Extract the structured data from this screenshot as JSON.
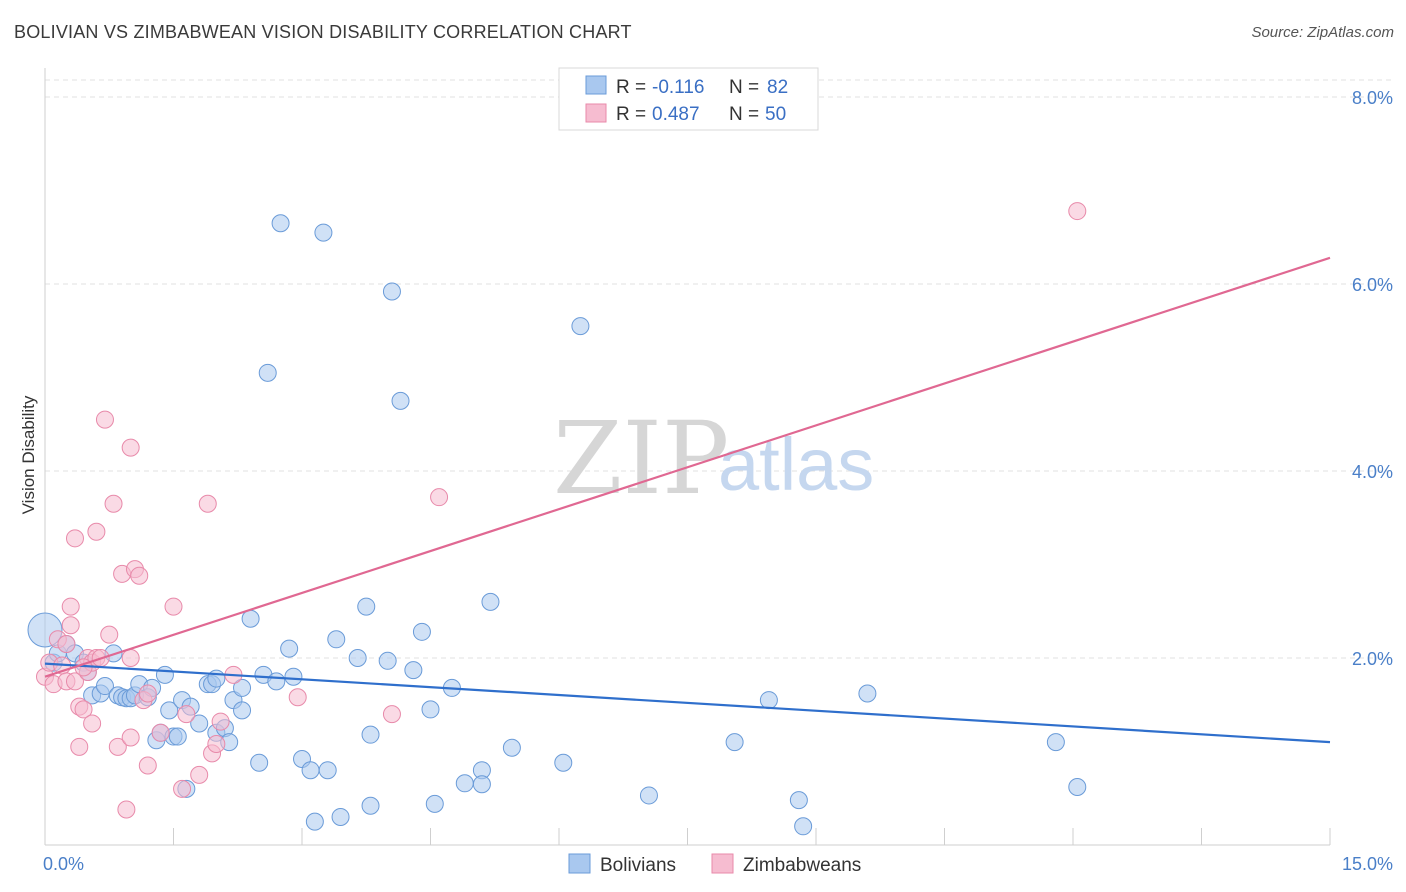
{
  "title": "BOLIVIAN VS ZIMBABWEAN VISION DISABILITY CORRELATION CHART",
  "source": "Source: ZipAtlas.com",
  "watermark": {
    "zip": "ZIP",
    "atlas": "atlas"
  },
  "legend": {
    "rows": [
      {
        "r_label": "R = ",
        "r_value": "-0.116",
        "n_label": "N = ",
        "n_value": "82"
      },
      {
        "r_label": "R = ",
        "r_value": "0.487",
        "n_label": "N = ",
        "n_value": "50"
      }
    ]
  },
  "colors": {
    "bolivians_fill": "#a9c8ef",
    "bolivians_stroke": "#6a9bd8",
    "bolivians_line": "#2f6fcc",
    "zimbabweans_fill": "#f6bcd0",
    "zimbabweans_stroke": "#e88aaa",
    "zimbabweans_line": "#e06892",
    "grid": "#e2e2e2",
    "axis_text": "#4a7fc8"
  },
  "chart_data": {
    "type": "scatter",
    "title": "BOLIVIAN VS ZIMBABWEAN VISION DISABILITY CORRELATION CHART",
    "xlabel": "",
    "ylabel": "Vision Disability",
    "xlim": [
      0,
      15
    ],
    "ylim": [
      0,
      8.0
    ],
    "x_tick_labels": [
      "0.0%",
      "15.0%"
    ],
    "y_ticks": [
      2,
      4,
      6,
      8
    ],
    "y_tick_labels": [
      "2.0%",
      "4.0%",
      "6.0%",
      "8.0%"
    ],
    "grid": true,
    "legend_position": "top-center",
    "series": [
      {
        "name": "Bolivians",
        "r": -0.116,
        "n": 82,
        "trend": [
          [
            0,
            1.94
          ],
          [
            15,
            1.1
          ]
        ],
        "points": [
          [
            0.0,
            2.3
          ],
          [
            0.1,
            1.95
          ],
          [
            0.15,
            2.05
          ],
          [
            0.25,
            2.15
          ],
          [
            0.35,
            2.05
          ],
          [
            0.45,
            1.95
          ],
          [
            0.5,
            1.85
          ],
          [
            0.55,
            1.6
          ],
          [
            0.65,
            1.62
          ],
          [
            0.7,
            1.7
          ],
          [
            0.8,
            2.05
          ],
          [
            0.85,
            1.6
          ],
          [
            0.9,
            1.58
          ],
          [
            0.95,
            1.57
          ],
          [
            1.0,
            1.57
          ],
          [
            1.05,
            1.6
          ],
          [
            1.1,
            1.72
          ],
          [
            1.2,
            1.58
          ],
          [
            1.25,
            1.68
          ],
          [
            1.3,
            1.12
          ],
          [
            1.35,
            1.2
          ],
          [
            1.4,
            1.82
          ],
          [
            1.45,
            1.44
          ],
          [
            1.5,
            1.16
          ],
          [
            1.55,
            1.16
          ],
          [
            1.6,
            1.55
          ],
          [
            1.65,
            0.6
          ],
          [
            1.7,
            1.48
          ],
          [
            1.8,
            1.3
          ],
          [
            1.9,
            1.72
          ],
          [
            1.95,
            1.72
          ],
          [
            2.0,
            1.78
          ],
          [
            2.0,
            1.2
          ],
          [
            2.1,
            1.25
          ],
          [
            2.15,
            1.1
          ],
          [
            2.2,
            1.55
          ],
          [
            2.3,
            1.44
          ],
          [
            2.3,
            1.68
          ],
          [
            2.4,
            2.42
          ],
          [
            2.5,
            0.88
          ],
          [
            2.55,
            1.82
          ],
          [
            2.6,
            5.05
          ],
          [
            2.7,
            1.75
          ],
          [
            2.75,
            6.65
          ],
          [
            2.85,
            2.1
          ],
          [
            2.9,
            1.8
          ],
          [
            3.0,
            0.92
          ],
          [
            3.1,
            0.8
          ],
          [
            3.15,
            0.25
          ],
          [
            3.25,
            6.55
          ],
          [
            3.3,
            0.8
          ],
          [
            3.4,
            2.2
          ],
          [
            3.45,
            0.3
          ],
          [
            3.65,
            2.0
          ],
          [
            3.75,
            2.55
          ],
          [
            3.8,
            0.42
          ],
          [
            3.8,
            1.18
          ],
          [
            4.0,
            1.97
          ],
          [
            4.05,
            5.92
          ],
          [
            4.15,
            4.75
          ],
          [
            4.3,
            1.87
          ],
          [
            4.4,
            2.28
          ],
          [
            4.5,
            1.45
          ],
          [
            4.55,
            0.44
          ],
          [
            4.75,
            1.68
          ],
          [
            4.9,
            0.66
          ],
          [
            5.1,
            0.8
          ],
          [
            5.1,
            0.65
          ],
          [
            5.2,
            2.6
          ],
          [
            5.45,
            1.04
          ],
          [
            6.05,
            0.88
          ],
          [
            6.25,
            5.55
          ],
          [
            7.05,
            0.53
          ],
          [
            8.05,
            1.1
          ],
          [
            8.45,
            1.55
          ],
          [
            8.8,
            0.48
          ],
          [
            8.85,
            0.2
          ],
          [
            9.6,
            1.62
          ],
          [
            11.8,
            1.1
          ],
          [
            12.05,
            0.62
          ]
        ]
      },
      {
        "name": "Zimbabweans",
        "r": 0.487,
        "n": 50,
        "trend": [
          [
            0,
            1.8
          ],
          [
            15,
            6.28
          ]
        ],
        "points": [
          [
            0.0,
            1.8
          ],
          [
            0.05,
            1.95
          ],
          [
            0.1,
            1.72
          ],
          [
            0.15,
            2.2
          ],
          [
            0.2,
            1.92
          ],
          [
            0.25,
            1.75
          ],
          [
            0.3,
            2.55
          ],
          [
            0.3,
            2.35
          ],
          [
            0.35,
            1.75
          ],
          [
            0.35,
            3.28
          ],
          [
            0.4,
            1.48
          ],
          [
            0.4,
            1.05
          ],
          [
            0.45,
            1.45
          ],
          [
            0.5,
            2.0
          ],
          [
            0.5,
            1.85
          ],
          [
            0.55,
            1.95
          ],
          [
            0.55,
            1.3
          ],
          [
            0.6,
            3.35
          ],
          [
            0.6,
            2.0
          ],
          [
            0.65,
            2.0
          ],
          [
            0.7,
            4.55
          ],
          [
            0.75,
            2.25
          ],
          [
            0.8,
            3.65
          ],
          [
            0.85,
            1.05
          ],
          [
            0.9,
            2.9
          ],
          [
            0.95,
            0.38
          ],
          [
            1.0,
            4.25
          ],
          [
            1.0,
            1.15
          ],
          [
            1.0,
            2.0
          ],
          [
            1.05,
            2.95
          ],
          [
            1.1,
            2.88
          ],
          [
            1.15,
            1.55
          ],
          [
            1.2,
            1.62
          ],
          [
            1.2,
            0.85
          ],
          [
            1.5,
            2.55
          ],
          [
            1.6,
            0.6
          ],
          [
            1.65,
            1.4
          ],
          [
            1.8,
            0.75
          ],
          [
            1.9,
            3.65
          ],
          [
            1.95,
            0.98
          ],
          [
            2.0,
            1.08
          ],
          [
            2.05,
            1.32
          ],
          [
            2.2,
            1.82
          ],
          [
            2.95,
            1.58
          ],
          [
            4.05,
            1.4
          ],
          [
            4.6,
            3.72
          ],
          [
            12.05,
            6.78
          ],
          [
            1.35,
            1.2
          ],
          [
            0.45,
            1.9
          ],
          [
            0.25,
            2.15
          ]
        ]
      }
    ]
  },
  "bottom_legend": {
    "items": [
      "Bolivians",
      "Zimbabweans"
    ]
  }
}
